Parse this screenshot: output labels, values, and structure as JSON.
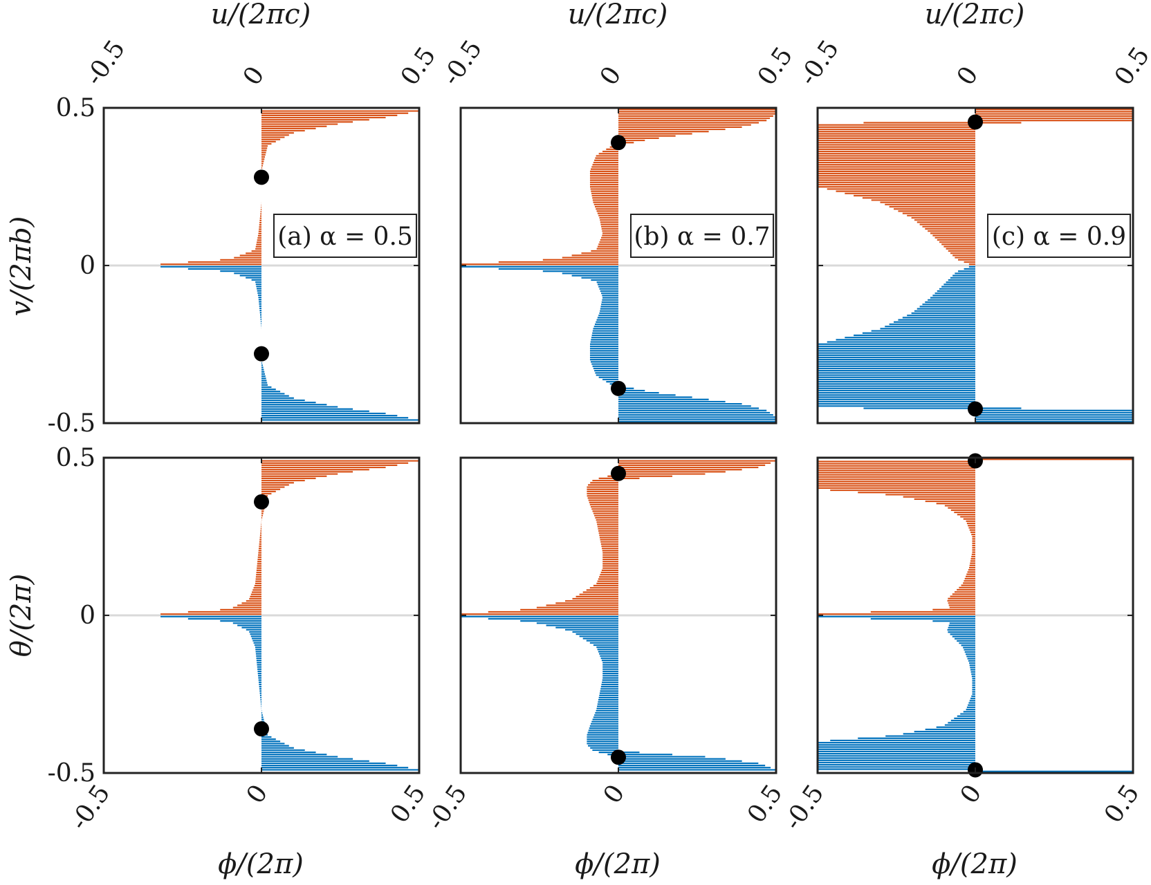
{
  "chart_data": [
    {
      "type": "bar",
      "orientation": "horizontal",
      "panel": "top-a",
      "title": "",
      "label": "(a) α = 0.5",
      "xlabel_top": "u/(2πc)",
      "ylabel": "v/(2πb)",
      "xlim": [
        -0.5,
        0.5
      ],
      "ylim": [
        -0.5,
        0.5
      ],
      "xticks": [
        "-0.5",
        "0",
        "0.5"
      ],
      "yticks": [
        "0.5",
        "0",
        "-0.5"
      ],
      "grid": false,
      "series": [
        {
          "color": "#D95319",
          "y": [
            0.005,
            0.02,
            0.05,
            0.1,
            0.2,
            0.3,
            0.38,
            0.42,
            0.45,
            0.47,
            0.49
          ],
          "x_left": [
            -0.32,
            -0.1,
            -0.02,
            -0.01,
            0.0,
            0.0,
            0.0,
            0.0,
            0.0,
            0.0,
            0.0
          ],
          "x_right": [
            0.0,
            0.0,
            0.0,
            0.0,
            0.0,
            0.0,
            0.02,
            0.1,
            0.25,
            0.4,
            0.5
          ]
        },
        {
          "color": "#0072BD",
          "y": [
            -0.005,
            -0.02,
            -0.05,
            -0.1,
            -0.2,
            -0.3,
            -0.38,
            -0.42,
            -0.45,
            -0.47,
            -0.49
          ],
          "x_left": [
            -0.32,
            -0.1,
            -0.02,
            -0.01,
            0.0,
            0.0,
            0.0,
            0.0,
            0.0,
            0.0,
            0.0
          ],
          "x_right": [
            0.0,
            0.0,
            0.0,
            0.0,
            0.0,
            0.0,
            0.02,
            0.1,
            0.25,
            0.4,
            0.5
          ]
        }
      ],
      "markers": [
        {
          "x": 0.0,
          "y": 0.28
        },
        {
          "x": 0.0,
          "y": -0.28
        }
      ]
    },
    {
      "type": "bar",
      "orientation": "horizontal",
      "panel": "top-b",
      "title": "",
      "label": "(b) α = 0.7",
      "xlabel_top": "u/(2πc)",
      "xlim": [
        -0.5,
        0.5
      ],
      "ylim": [
        -0.5,
        0.5
      ],
      "xticks": [
        "-0.5",
        "0",
        "0.5"
      ],
      "grid": false,
      "series": [
        {
          "color": "#D95319",
          "y": [
            0.005,
            0.02,
            0.05,
            0.1,
            0.15,
            0.2,
            0.25,
            0.3,
            0.35,
            0.38,
            0.4,
            0.42,
            0.44,
            0.46,
            0.48,
            0.495
          ],
          "x_left": [
            -0.5,
            -0.2,
            -0.07,
            -0.05,
            -0.06,
            -0.08,
            -0.09,
            -0.09,
            -0.07,
            -0.02,
            0.0,
            0.0,
            0.0,
            0.0,
            0.0,
            0.0
          ],
          "x_right": [
            0.0,
            0.0,
            0.0,
            0.0,
            0.0,
            0.0,
            0.0,
            0.0,
            0.0,
            0.0,
            0.1,
            0.25,
            0.4,
            0.47,
            0.5,
            0.5
          ]
        },
        {
          "color": "#0072BD",
          "y": [
            -0.005,
            -0.02,
            -0.05,
            -0.1,
            -0.15,
            -0.2,
            -0.25,
            -0.3,
            -0.35,
            -0.38,
            -0.4,
            -0.42,
            -0.44,
            -0.46,
            -0.48,
            -0.495
          ],
          "x_left": [
            -0.5,
            -0.2,
            -0.07,
            -0.05,
            -0.06,
            -0.08,
            -0.09,
            -0.09,
            -0.07,
            -0.02,
            0.0,
            0.0,
            0.0,
            0.0,
            0.0,
            0.0
          ],
          "x_right": [
            0.0,
            0.0,
            0.0,
            0.0,
            0.0,
            0.0,
            0.0,
            0.0,
            0.0,
            0.0,
            0.1,
            0.25,
            0.4,
            0.47,
            0.5,
            0.5
          ]
        }
      ],
      "markers": [
        {
          "x": 0.0,
          "y": 0.39
        },
        {
          "x": 0.0,
          "y": -0.39
        }
      ]
    },
    {
      "type": "bar",
      "orientation": "horizontal",
      "panel": "top-c",
      "title": "",
      "label": "(c) α = 0.9",
      "xlabel_top": "u/(2πc)",
      "xlim": [
        -0.5,
        0.5
      ],
      "ylim": [
        -0.5,
        0.5
      ],
      "xticks": [
        "-0.5",
        "0",
        "0.5"
      ],
      "grid": false,
      "series": [
        {
          "color": "#D95319",
          "y": [
            0.005,
            0.02,
            0.05,
            0.08,
            0.1,
            0.15,
            0.2,
            0.25,
            0.3,
            0.35,
            0.4,
            0.45,
            0.46,
            0.48,
            0.495
          ],
          "x_left": [
            -0.02,
            -0.06,
            -0.09,
            -0.12,
            -0.14,
            -0.2,
            -0.3,
            -0.5,
            -0.5,
            -0.5,
            -0.5,
            -0.5,
            0.0,
            0.0,
            0.0
          ],
          "x_right": [
            0.0,
            0.0,
            0.0,
            0.0,
            0.0,
            0.0,
            0.0,
            0.0,
            0.0,
            0.0,
            0.0,
            0.0,
            0.5,
            0.5,
            0.5
          ]
        },
        {
          "color": "#0072BD",
          "y": [
            -0.005,
            -0.02,
            -0.05,
            -0.08,
            -0.1,
            -0.15,
            -0.2,
            -0.25,
            -0.3,
            -0.35,
            -0.4,
            -0.45,
            -0.46,
            -0.48,
            -0.495
          ],
          "x_left": [
            -0.02,
            -0.06,
            -0.09,
            -0.12,
            -0.14,
            -0.2,
            -0.3,
            -0.5,
            -0.5,
            -0.5,
            -0.5,
            -0.5,
            0.0,
            0.0,
            0.0
          ],
          "x_right": [
            0.0,
            0.0,
            0.0,
            0.0,
            0.0,
            0.0,
            0.0,
            0.0,
            0.0,
            0.0,
            0.0,
            0.0,
            0.5,
            0.5,
            0.5
          ]
        }
      ],
      "markers": [
        {
          "x": 0.0,
          "y": 0.455
        },
        {
          "x": 0.0,
          "y": -0.455
        }
      ]
    },
    {
      "type": "bar",
      "orientation": "horizontal",
      "panel": "bottom-a",
      "title": "",
      "xlabel": "ϕ/(2π)",
      "ylabel": "θ/(2π)",
      "xlim": [
        -0.5,
        0.5
      ],
      "ylim": [
        -0.5,
        0.5
      ],
      "xticks": [
        "-0.5",
        "0",
        "0.5"
      ],
      "yticks": [
        "0.5",
        "0",
        "-0.5"
      ],
      "grid": false,
      "series": [
        {
          "color": "#D95319",
          "y": [
            0.005,
            0.02,
            0.05,
            0.1,
            0.2,
            0.3,
            0.38,
            0.42,
            0.45,
            0.47,
            0.49
          ],
          "x_left": [
            -0.32,
            -0.1,
            -0.04,
            -0.02,
            -0.01,
            0.0,
            0.0,
            0.0,
            0.0,
            0.0,
            0.0
          ],
          "x_right": [
            0.0,
            0.0,
            0.0,
            0.0,
            0.0,
            0.0,
            0.02,
            0.1,
            0.25,
            0.4,
            0.5
          ]
        },
        {
          "color": "#0072BD",
          "y": [
            -0.005,
            -0.02,
            -0.05,
            -0.1,
            -0.2,
            -0.3,
            -0.38,
            -0.42,
            -0.45,
            -0.47,
            -0.49
          ],
          "x_left": [
            -0.32,
            -0.1,
            -0.04,
            -0.02,
            -0.01,
            0.0,
            0.0,
            0.0,
            0.0,
            0.0,
            0.0
          ],
          "x_right": [
            0.0,
            0.0,
            0.0,
            0.0,
            0.0,
            0.0,
            0.02,
            0.1,
            0.25,
            0.4,
            0.5
          ]
        }
      ],
      "markers": [
        {
          "x": 0.0,
          "y": 0.36
        },
        {
          "x": 0.0,
          "y": -0.36
        }
      ]
    },
    {
      "type": "bar",
      "orientation": "horizontal",
      "panel": "bottom-b",
      "title": "",
      "xlabel": "ϕ/(2π)",
      "xlim": [
        -0.5,
        0.5
      ],
      "ylim": [
        -0.5,
        0.5
      ],
      "xticks": [
        "-0.5",
        "0",
        "0.5"
      ],
      "grid": false,
      "series": [
        {
          "color": "#D95319",
          "y": [
            0.005,
            0.02,
            0.05,
            0.1,
            0.15,
            0.2,
            0.25,
            0.3,
            0.35,
            0.38,
            0.41,
            0.43,
            0.45,
            0.47,
            0.49
          ],
          "x_left": [
            -0.5,
            -0.28,
            -0.15,
            -0.07,
            -0.05,
            -0.05,
            -0.06,
            -0.07,
            -0.09,
            -0.1,
            -0.1,
            -0.08,
            0.0,
            0.0,
            0.0
          ],
          "x_right": [
            0.0,
            0.0,
            0.0,
            0.0,
            0.0,
            0.0,
            0.0,
            0.0,
            0.0,
            0.0,
            0.0,
            0.0,
            0.3,
            0.45,
            0.5
          ]
        },
        {
          "color": "#0072BD",
          "y": [
            -0.005,
            -0.02,
            -0.05,
            -0.1,
            -0.15,
            -0.2,
            -0.25,
            -0.3,
            -0.35,
            -0.38,
            -0.41,
            -0.43,
            -0.45,
            -0.47,
            -0.49
          ],
          "x_left": [
            -0.5,
            -0.28,
            -0.15,
            -0.07,
            -0.05,
            -0.05,
            -0.06,
            -0.07,
            -0.09,
            -0.1,
            -0.1,
            -0.08,
            0.0,
            0.0,
            0.0
          ],
          "x_right": [
            0.0,
            0.0,
            0.0,
            0.0,
            0.0,
            0.0,
            0.0,
            0.0,
            0.0,
            0.0,
            0.0,
            0.0,
            0.3,
            0.45,
            0.5
          ]
        }
      ],
      "markers": [
        {
          "x": 0.0,
          "y": 0.45
        },
        {
          "x": 0.0,
          "y": -0.45
        }
      ]
    },
    {
      "type": "bar",
      "orientation": "horizontal",
      "panel": "bottom-c",
      "title": "",
      "xlabel": "ϕ/(2π)",
      "xlim": [
        -0.5,
        0.5
      ],
      "ylim": [
        -0.5,
        0.5
      ],
      "xticks": [
        "-0.5",
        "0",
        "0.5"
      ],
      "grid": false,
      "series": [
        {
          "color": "#D95319",
          "y": [
            0.005,
            0.02,
            0.05,
            0.1,
            0.15,
            0.2,
            0.25,
            0.3,
            0.35,
            0.38,
            0.4,
            0.43,
            0.46,
            0.49,
            0.495
          ],
          "x_left": [
            -0.5,
            -0.08,
            -0.09,
            -0.04,
            -0.02,
            -0.01,
            -0.01,
            -0.03,
            -0.1,
            -0.25,
            -0.5,
            -0.5,
            -0.5,
            -0.5,
            0.0
          ],
          "x_right": [
            0.0,
            0.0,
            0.0,
            0.0,
            0.0,
            0.0,
            0.0,
            0.0,
            0.0,
            0.0,
            0.0,
            0.0,
            0.0,
            0.0,
            0.5
          ]
        },
        {
          "color": "#0072BD",
          "y": [
            -0.005,
            -0.02,
            -0.05,
            -0.1,
            -0.15,
            -0.2,
            -0.25,
            -0.3,
            -0.35,
            -0.38,
            -0.4,
            -0.43,
            -0.46,
            -0.49,
            -0.495
          ],
          "x_left": [
            -0.5,
            -0.08,
            -0.09,
            -0.04,
            -0.02,
            -0.01,
            -0.01,
            -0.03,
            -0.1,
            -0.25,
            -0.5,
            -0.5,
            -0.5,
            -0.5,
            0.0
          ],
          "x_right": [
            0.0,
            0.0,
            0.0,
            0.0,
            0.0,
            0.0,
            0.0,
            0.0,
            0.0,
            0.0,
            0.0,
            0.0,
            0.0,
            0.0,
            0.5
          ]
        }
      ],
      "markers": [
        {
          "x": 0.0,
          "y": 0.49
        },
        {
          "x": 0.0,
          "y": -0.49
        }
      ]
    }
  ],
  "labels": {
    "top_axis": "u/(2πc)",
    "bottom_axis": "ϕ/(2π)",
    "left_top": "v/(2πb)",
    "left_bottom": "θ/(2π)",
    "panel_a": "(a) α = 0.5",
    "panel_b": "(b) α = 0.7",
    "panel_c": "(c) α = 0.9"
  },
  "colors": {
    "orange": "#D95319",
    "blue": "#0072BD",
    "marker": "#000000"
  }
}
